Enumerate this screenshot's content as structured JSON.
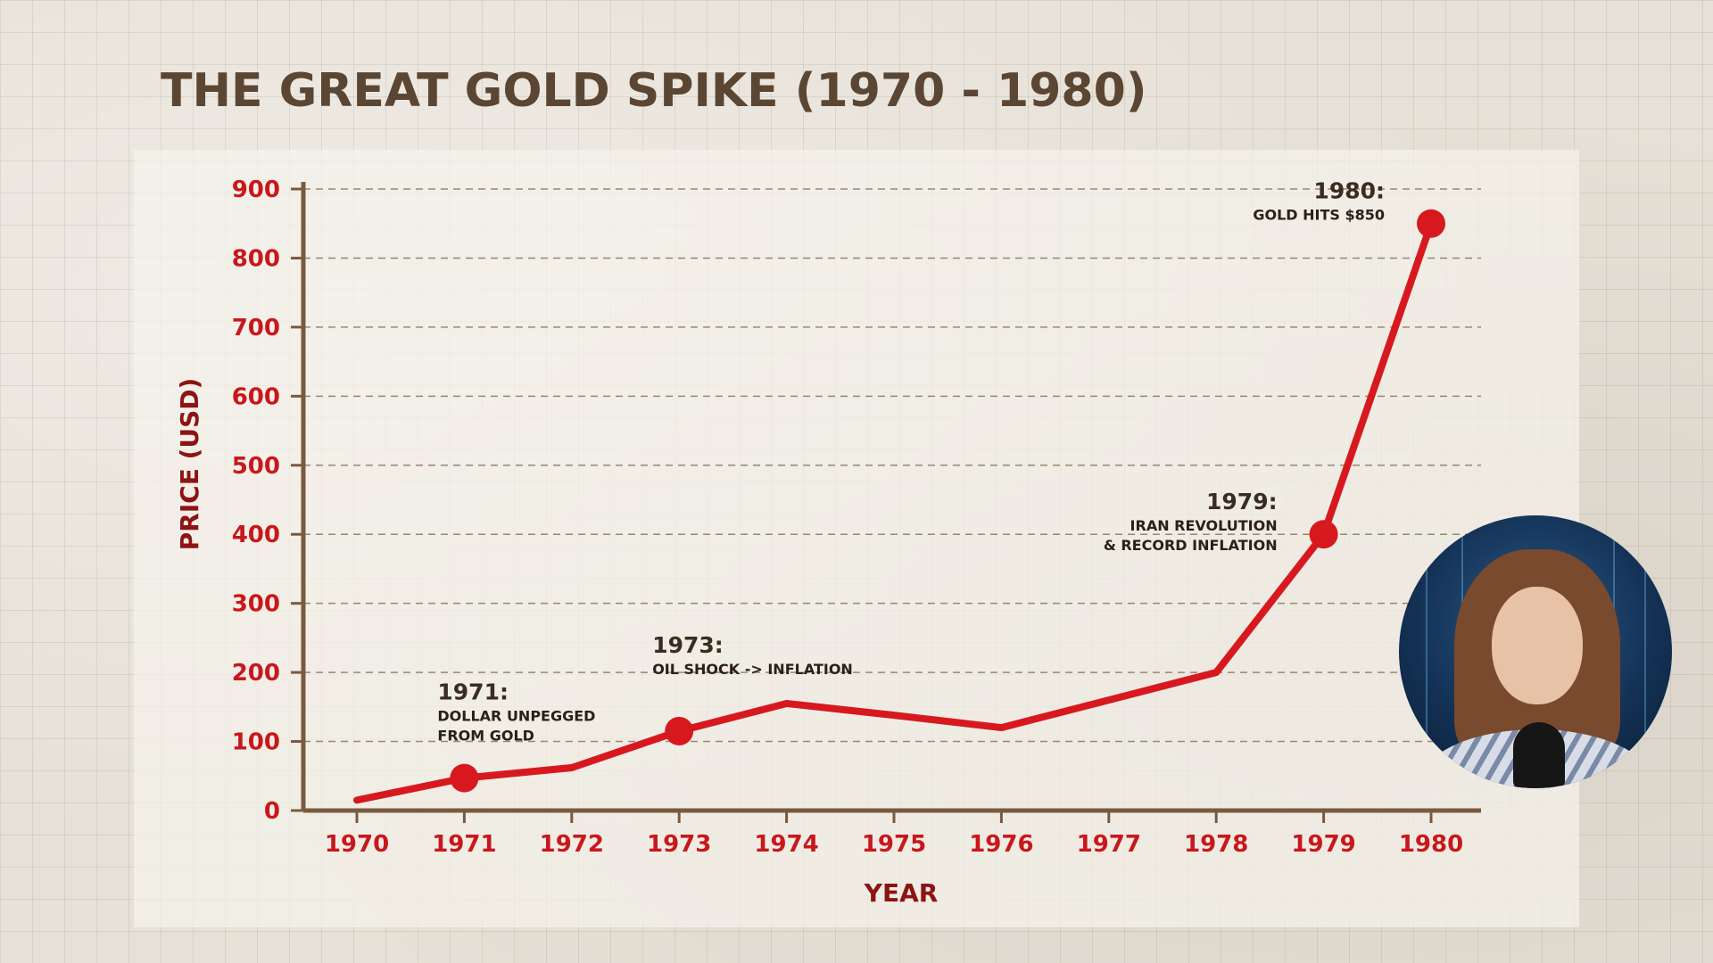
{
  "title": "THE GREAT GOLD SPIKE (1970 - 1980)",
  "chart_data": {
    "type": "line",
    "title": "THE GREAT GOLD SPIKE (1970 - 1980)",
    "xlabel": "YEAR",
    "ylabel": "PRICE (USD)",
    "x_ticks": [
      "1970",
      "1971",
      "1972",
      "1973",
      "1974",
      "1975",
      "1976",
      "1977",
      "1978",
      "1979",
      "1980"
    ],
    "y_ticks": [
      "0",
      "100",
      "200",
      "300",
      "400",
      "500",
      "600",
      "700",
      "800",
      "900"
    ],
    "ylim": [
      0,
      900
    ],
    "grid": "horizontal dashed",
    "points": [
      {
        "x": 1970,
        "y": 15
      },
      {
        "x": 1971,
        "y": 47
      },
      {
        "x": 1972,
        "y": 62
      },
      {
        "x": 1973,
        "y": 115
      },
      {
        "x": 1974,
        "y": 155
      },
      {
        "x": 1975,
        "y": 138
      },
      {
        "x": 1976,
        "y": 120
      },
      {
        "x": 1977,
        "y": 160
      },
      {
        "x": 1978,
        "y": 200
      },
      {
        "x": 1979,
        "y": 400
      },
      {
        "x": 1980,
        "y": 850
      }
    ],
    "markers": [
      {
        "x": 1971,
        "y": 47
      },
      {
        "x": 1973,
        "y": 115
      },
      {
        "x": 1979,
        "y": 400
      },
      {
        "x": 1980,
        "y": 850
      }
    ],
    "annotations": [
      {
        "x": 1971,
        "y": 47,
        "heading": "1971:",
        "lines": [
          "DOLLAR UNPEGGED",
          "FROM GOLD"
        ],
        "align": "start"
      },
      {
        "x": 1973,
        "y": 115,
        "heading": "1973:",
        "lines": [
          "OIL SHOCK -> INFLATION"
        ],
        "align": "start"
      },
      {
        "x": 1979,
        "y": 400,
        "heading": "1979:",
        "lines": [
          "IRAN REVOLUTION",
          "& RECORD INFLATION"
        ],
        "align": "end"
      },
      {
        "x": 1980,
        "y": 850,
        "heading": "1980:",
        "lines": [
          "GOLD HITS $850"
        ],
        "align": "end"
      }
    ],
    "colors": {
      "line": "#d7191f",
      "ticks": "#c8181c",
      "axis": "#7a5a3e",
      "grid": "#9a8670",
      "axis_title": "#8c1414",
      "annotation": "#3a2c20"
    }
  },
  "webcam": {
    "label": "presenter webcam"
  }
}
